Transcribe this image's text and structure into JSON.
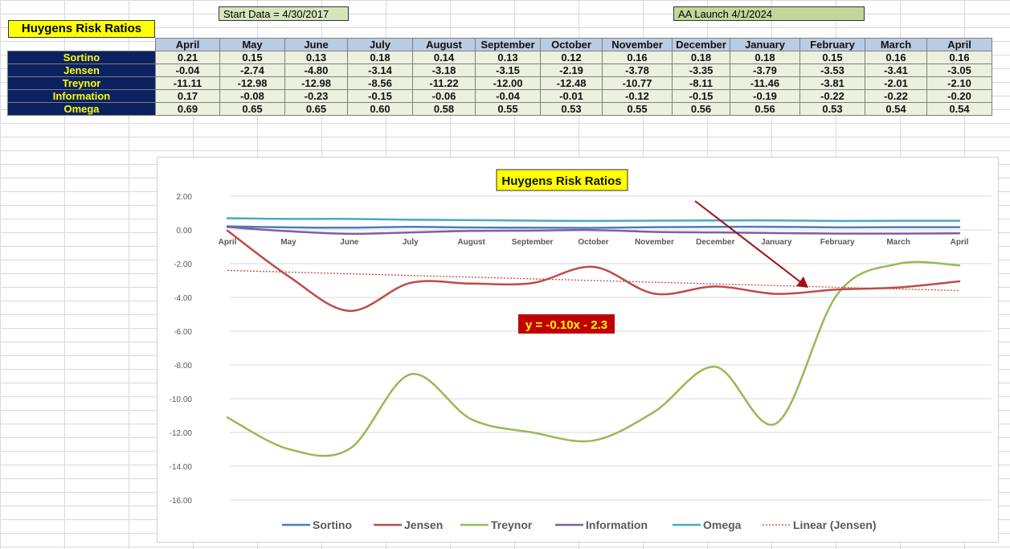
{
  "header": {
    "start_label": "Start Data = 4/30/2017",
    "launch_label": "AA Launch 4/1/2024",
    "title": "Huygens Risk Ratios"
  },
  "table": {
    "columns": [
      "April",
      "May",
      "June",
      "July",
      "August",
      "September",
      "October",
      "November",
      "December",
      "January",
      "February",
      "March",
      "April"
    ],
    "rows": [
      {
        "label": "Sortino",
        "values": [
          "0.21",
          "0.15",
          "0.13",
          "0.18",
          "0.14",
          "0.13",
          "0.12",
          "0.16",
          "0.18",
          "0.18",
          "0.15",
          "0.16",
          "0.16"
        ]
      },
      {
        "label": "Jensen",
        "values": [
          "-0.04",
          "-2.74",
          "-4.80",
          "-3.14",
          "-3.18",
          "-3.15",
          "-2.19",
          "-3.78",
          "-3.35",
          "-3.79",
          "-3.53",
          "-3.41",
          "-3.05"
        ]
      },
      {
        "label": "Treynor",
        "values": [
          "-11.11",
          "-12.98",
          "-12.98",
          "-8.56",
          "-11.22",
          "-12.00",
          "-12.48",
          "-10.77",
          "-8.11",
          "-11.46",
          "-3.81",
          "-2.01",
          "-2.10"
        ]
      },
      {
        "label": "Information",
        "values": [
          "0.17",
          "-0.08",
          "-0.23",
          "-0.15",
          "-0.06",
          "-0.04",
          "-0.01",
          "-0.12",
          "-0.15",
          "-0.19",
          "-0.22",
          "-0.22",
          "-0.20"
        ]
      },
      {
        "label": "Omega",
        "values": [
          "0.69",
          "0.65",
          "0.65",
          "0.60",
          "0.58",
          "0.55",
          "0.53",
          "0.55",
          "0.56",
          "0.56",
          "0.53",
          "0.54",
          "0.54"
        ]
      }
    ]
  },
  "chart_data": {
    "type": "line",
    "title": "Huygens Risk Ratios",
    "categories": [
      "April",
      "May",
      "June",
      "July",
      "August",
      "September",
      "October",
      "November",
      "December",
      "January",
      "February",
      "March",
      "April"
    ],
    "ylim": [
      -16,
      2
    ],
    "yticks": [
      "2.00",
      "0.00",
      "-2.00",
      "-4.00",
      "-6.00",
      "-8.00",
      "-10.00",
      "-12.00",
      "-14.00",
      "-16.00"
    ],
    "ytick_values": [
      2,
      0,
      -2,
      -4,
      -6,
      -8,
      -10,
      -12,
      -14,
      -16
    ],
    "grid": true,
    "legend_position": "bottom",
    "series": [
      {
        "name": "Sortino",
        "color": "#4a7ebb",
        "values": [
          0.21,
          0.15,
          0.13,
          0.18,
          0.14,
          0.13,
          0.12,
          0.16,
          0.18,
          0.18,
          0.15,
          0.16,
          0.16
        ]
      },
      {
        "name": "Jensen",
        "color": "#be4b48",
        "values": [
          -0.04,
          -2.74,
          -4.8,
          -3.14,
          -3.18,
          -3.15,
          -2.19,
          -3.78,
          -3.35,
          -3.79,
          -3.53,
          -3.41,
          -3.05
        ]
      },
      {
        "name": "Treynor",
        "color": "#98b954",
        "values": [
          -11.11,
          -12.98,
          -12.98,
          -8.56,
          -11.22,
          -12.0,
          -12.48,
          -10.77,
          -8.11,
          -11.46,
          -3.81,
          -2.01,
          -2.1
        ]
      },
      {
        "name": "Information",
        "color": "#7d60a0",
        "values": [
          0.17,
          -0.08,
          -0.23,
          -0.15,
          -0.06,
          -0.04,
          -0.01,
          -0.12,
          -0.15,
          -0.19,
          -0.22,
          -0.22,
          -0.2
        ]
      },
      {
        "name": "Omega",
        "color": "#46aac5",
        "values": [
          0.69,
          0.65,
          0.65,
          0.6,
          0.58,
          0.55,
          0.53,
          0.55,
          0.56,
          0.56,
          0.53,
          0.54,
          0.54
        ]
      }
    ],
    "trendline": {
      "name": "Linear (Jensen)",
      "color": "#be4b48",
      "slope": -0.1,
      "intercept": -2.3,
      "equation": "y = -0.10x - 2.3"
    },
    "colors": {
      "title_bg": "#ffff00",
      "equation_bg": "#c00000",
      "equation_text": "#ffff00",
      "arrow": "#a01010"
    }
  }
}
